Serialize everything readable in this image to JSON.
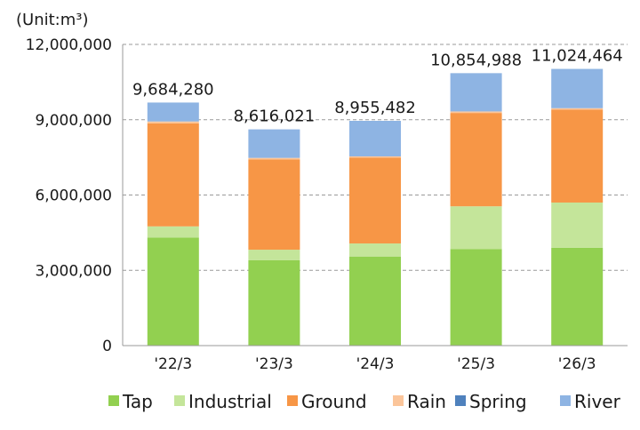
{
  "chart_data": {
    "type": "bar",
    "stacked": true,
    "unit_label": "(Unit:m³)",
    "categories": [
      "'22/3",
      "'23/3",
      "'24/3",
      "'25/3",
      "'26/3"
    ],
    "ylim": [
      0,
      12000000
    ],
    "y_ticks": [
      0,
      3000000,
      6000000,
      9000000,
      12000000
    ],
    "y_tick_labels": [
      "0",
      "3,000,000",
      "6,000,000",
      "9,000,000",
      "12,000,000"
    ],
    "grid": true,
    "legend_position": "bottom",
    "totals": [
      9684280,
      8616021,
      8955482,
      10854988,
      11024464
    ],
    "total_labels": [
      "9,684,280",
      "8,616,021",
      "8,955,482",
      "10,854,988",
      "11,024,464"
    ],
    "series": [
      {
        "name": "Tap",
        "color": "#92d050",
        "values": [
          4300000,
          3400000,
          3550000,
          3850000,
          3900000
        ]
      },
      {
        "name": "Industrial",
        "color": "#c4e59a",
        "values": [
          450000,
          420000,
          520000,
          1700000,
          1800000
        ]
      },
      {
        "name": "Ground",
        "color": "#f79646",
        "values": [
          4100000,
          3600000,
          3420000,
          3720000,
          3700000
        ]
      },
      {
        "name": "Rain",
        "color": "#fbc59a",
        "values": [
          80000,
          60000,
          50000,
          60000,
          60000
        ]
      },
      {
        "name": "Spring",
        "color": "#4f81bd",
        "values": [
          0,
          0,
          0,
          0,
          0
        ]
      },
      {
        "name": "River",
        "color": "#8eb4e3",
        "values": [
          754280,
          1136021,
          1415482,
          1524988,
          1564464
        ]
      }
    ]
  }
}
